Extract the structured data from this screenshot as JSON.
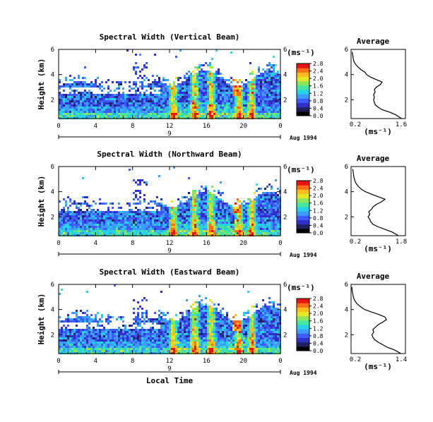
{
  "chart_data": [
    {
      "type": "heatmap",
      "title": "Spectral Width (Vertical Beam)",
      "ylabel": "Height (km)",
      "xlim": [
        0,
        24
      ],
      "ylim": [
        0.5,
        6
      ],
      "x_ticks": [
        "0",
        "4",
        "8",
        "12",
        "16",
        "20",
        "0"
      ],
      "y_ticks": [
        "2",
        "4",
        "6"
      ],
      "date_label": "9",
      "month_label": "Aug 1994",
      "colorbar": {
        "unit": "(ms⁻¹)",
        "ticks": [
          "0.0",
          "0.4",
          "0.8",
          "1.2",
          "1.6",
          "2.0",
          "2.4",
          "2.8"
        ]
      },
      "average": {
        "title": "Average",
        "xlabel": "(ms⁻¹)",
        "x_ticks": [
          "0.2",
          "1.6"
        ],
        "y_ticks": [
          "2",
          "4",
          "6"
        ],
        "xlim": [
          0.2,
          1.6
        ],
        "ylim": [
          0.5,
          6
        ],
        "profile": [
          [
            0.5,
            1.5
          ],
          [
            0.8,
            1.35
          ],
          [
            1.0,
            1.2
          ],
          [
            1.2,
            1.0
          ],
          [
            1.4,
            0.9
          ],
          [
            1.6,
            0.82
          ],
          [
            1.8,
            0.8
          ],
          [
            2.0,
            0.78
          ],
          [
            2.2,
            0.8
          ],
          [
            2.4,
            0.78
          ],
          [
            2.6,
            0.82
          ],
          [
            2.8,
            0.8
          ],
          [
            3.0,
            0.85
          ],
          [
            3.2,
            0.95
          ],
          [
            3.4,
            1.0
          ],
          [
            3.6,
            0.85
          ],
          [
            3.8,
            0.7
          ],
          [
            4.0,
            0.6
          ],
          [
            4.2,
            0.55
          ],
          [
            4.4,
            0.45
          ],
          [
            4.6,
            0.38
          ],
          [
            4.8,
            0.32
          ],
          [
            5.0,
            0.28
          ],
          [
            5.2,
            0.26
          ],
          [
            5.4,
            0.25
          ],
          [
            5.6,
            0.24
          ],
          [
            5.8,
            0.23
          ]
        ]
      }
    },
    {
      "type": "heatmap",
      "title": "Spectral Width (Northward Beam)",
      "ylabel": "Height (km)",
      "xlim": [
        0,
        24
      ],
      "ylim": [
        0.5,
        6
      ],
      "x_ticks": [
        "0",
        "4",
        "8",
        "12",
        "16",
        "20",
        "0"
      ],
      "y_ticks": [
        "2",
        "4",
        "6"
      ],
      "date_label": "9",
      "month_label": "Aug 1994",
      "colorbar": {
        "unit": "(ms⁻¹)",
        "ticks": [
          "0.0",
          "0.4",
          "0.8",
          "1.2",
          "1.6",
          "2.0",
          "2.4",
          "2.8"
        ]
      },
      "average": {
        "title": "Average",
        "xlabel": "(ms⁻¹)",
        "x_ticks": [
          "0.2",
          "1.8"
        ],
        "y_ticks": [
          "2",
          "4",
          "6"
        ],
        "xlim": [
          0.2,
          1.8
        ],
        "ylim": [
          0.5,
          6
        ],
        "profile": [
          [
            0.5,
            1.6
          ],
          [
            0.8,
            1.4
          ],
          [
            1.0,
            1.2
          ],
          [
            1.2,
            1.0
          ],
          [
            1.4,
            0.85
          ],
          [
            1.6,
            0.78
          ],
          [
            1.8,
            0.75
          ],
          [
            2.0,
            0.7
          ],
          [
            2.2,
            0.75
          ],
          [
            2.4,
            0.72
          ],
          [
            2.6,
            0.8
          ],
          [
            2.8,
            0.85
          ],
          [
            3.0,
            0.95
          ],
          [
            3.2,
            1.1
          ],
          [
            3.4,
            1.2
          ],
          [
            3.6,
            1.0
          ],
          [
            3.8,
            0.8
          ],
          [
            4.0,
            0.62
          ],
          [
            4.2,
            0.5
          ],
          [
            4.4,
            0.42
          ],
          [
            4.6,
            0.36
          ],
          [
            4.8,
            0.32
          ],
          [
            5.0,
            0.3
          ],
          [
            5.2,
            0.28
          ],
          [
            5.4,
            0.27
          ],
          [
            5.6,
            0.26
          ],
          [
            5.8,
            0.25
          ]
        ]
      }
    },
    {
      "type": "heatmap",
      "title": "Spectral Width (Eastward Beam)",
      "ylabel": "Height (km)",
      "xlabel": "Local Time",
      "xlim": [
        0,
        24
      ],
      "ylim": [
        0.5,
        6
      ],
      "x_ticks": [
        "0",
        "4",
        "8",
        "12",
        "16",
        "20",
        "0"
      ],
      "y_ticks": [
        "2",
        "4",
        "6"
      ],
      "date_label": "9",
      "month_label": "Aug 1994",
      "colorbar": {
        "unit": "(ms⁻¹)",
        "ticks": [
          "0.0",
          "0.4",
          "0.8",
          "1.2",
          "1.6",
          "2.0",
          "2.4",
          "2.8"
        ]
      },
      "average": {
        "title": "Average",
        "xlabel": "(ms⁻¹)",
        "x_ticks": [
          "0.2",
          "1.4"
        ],
        "y_ticks": [
          "2",
          "4",
          "6"
        ],
        "xlim": [
          0.2,
          1.4
        ],
        "ylim": [
          0.5,
          6
        ],
        "profile": [
          [
            0.5,
            1.3
          ],
          [
            0.8,
            1.15
          ],
          [
            1.0,
            1.0
          ],
          [
            1.2,
            0.9
          ],
          [
            1.4,
            0.8
          ],
          [
            1.6,
            0.72
          ],
          [
            1.8,
            0.68
          ],
          [
            2.0,
            0.66
          ],
          [
            2.2,
            0.7
          ],
          [
            2.4,
            0.68
          ],
          [
            2.6,
            0.74
          ],
          [
            2.8,
            0.8
          ],
          [
            3.0,
            0.9
          ],
          [
            3.2,
            0.98
          ],
          [
            3.4,
            0.95
          ],
          [
            3.6,
            0.82
          ],
          [
            3.8,
            0.65
          ],
          [
            4.0,
            0.5
          ],
          [
            4.2,
            0.42
          ],
          [
            4.4,
            0.35
          ],
          [
            4.6,
            0.3
          ],
          [
            4.8,
            0.27
          ],
          [
            5.0,
            0.25
          ],
          [
            5.2,
            0.24
          ],
          [
            5.4,
            0.23
          ],
          [
            5.6,
            0.22
          ],
          [
            5.8,
            0.22
          ]
        ]
      }
    }
  ],
  "colormap": [
    "#000000",
    "#202060",
    "#3030c8",
    "#3c5cff",
    "#3c9cff",
    "#28d2e6",
    "#46e6a0",
    "#8ce65a",
    "#e6e628",
    "#ffbe1e",
    "#ff6e14",
    "#e61414"
  ]
}
